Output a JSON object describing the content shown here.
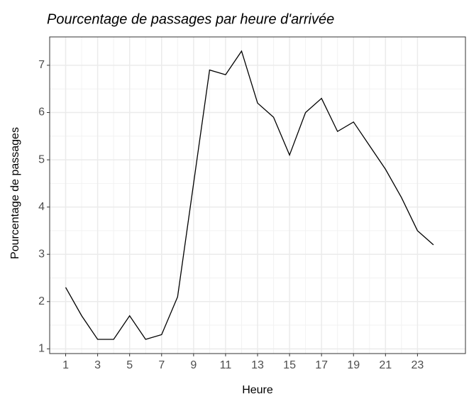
{
  "chart_data": {
    "type": "line",
    "title": "Pourcentage de passages par heure d'arrivée",
    "x_label": "Heure",
    "y_label": "Pourcentage de passages",
    "x": [
      1,
      2,
      3,
      4,
      5,
      6,
      7,
      8,
      9,
      10,
      11,
      12,
      13,
      14,
      15,
      16,
      17,
      18,
      19,
      20,
      21,
      22,
      23,
      24
    ],
    "series": [
      {
        "color": "#000000",
        "values": [
          2.3,
          1.7,
          1.2,
          1.2,
          1.7,
          1.2,
          1.3,
          2.1,
          4.5,
          6.9,
          6.8,
          7.3,
          6.2,
          5.9,
          5.1,
          6.0,
          6.3,
          5.6,
          5.8,
          5.3,
          4.8,
          4.2,
          3.5,
          3.2
        ]
      }
    ],
    "xlim": [
      0,
      26
    ],
    "xticks": [
      1,
      3,
      5,
      7,
      9,
      11,
      13,
      15,
      17,
      19,
      21,
      23
    ],
    "ylim": [
      0.9,
      7.6
    ],
    "yticks": [
      1,
      2,
      3,
      4,
      5,
      6,
      7
    ],
    "grid": true
  }
}
